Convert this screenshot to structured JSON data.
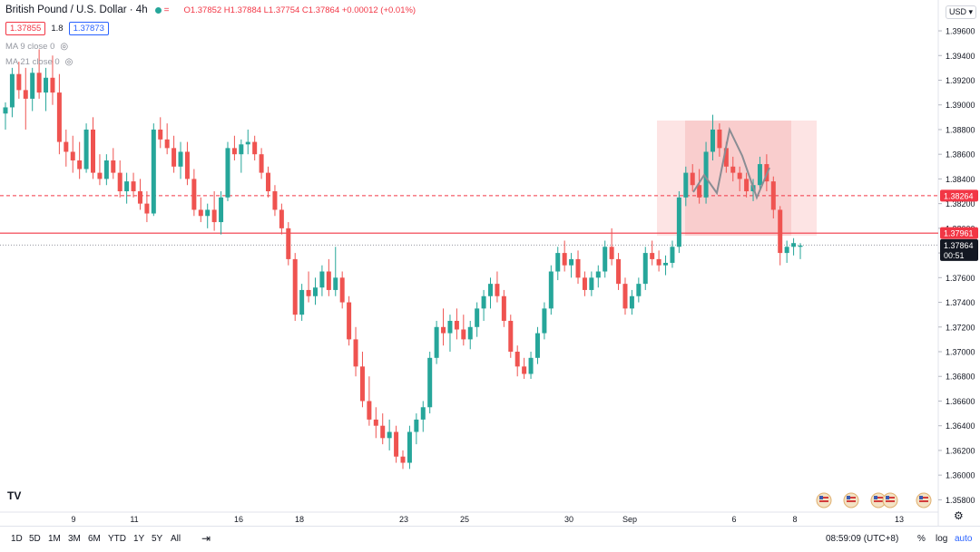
{
  "header": {
    "symbol": "British Pound / U.S. Dollar · 4h",
    "status_mark": "=",
    "ohlc": "O1.37852 H1.37884 L1.37754 C1.37864 +0.00012 (+0.01%)"
  },
  "quote": {
    "sell": "1.37855",
    "spread": "1.8",
    "buy": "1.37873"
  },
  "indicators": [
    {
      "label": "MA 9 close 0"
    },
    {
      "label": "MA 21 close 0"
    }
  ],
  "currency_button": "USD",
  "tv_logo": "TV",
  "bottom_bar": {
    "timeframes": [
      "1D",
      "5D",
      "1M",
      "3M",
      "6M",
      "YTD",
      "1Y",
      "5Y",
      "All"
    ],
    "clock": "08:59:09 (UTC+8)",
    "percent_label": "%",
    "log_label": "log",
    "auto_label": "auto"
  },
  "colors": {
    "up": "#26a69a",
    "down": "#ef5350",
    "accent": "#2962ff",
    "zone": "#f8c4c4"
  },
  "chart_data": {
    "type": "candlestick",
    "x_tick_labels": [
      "9",
      "11",
      "16",
      "18",
      "23",
      "25",
      "30",
      "Sep",
      "6",
      "8",
      "13"
    ],
    "ylim": [
      1.357,
      1.3985
    ],
    "y_ticks": [
      "1.39600",
      "1.39400",
      "1.39200",
      "1.39000",
      "1.38800",
      "1.38600",
      "1.38400",
      "1.38200",
      "1.38000",
      "1.37800",
      "1.37600",
      "1.37400",
      "1.37200",
      "1.37000",
      "1.36800",
      "1.36600",
      "1.36400",
      "1.36200",
      "1.36000",
      "1.35800"
    ],
    "price_labels": [
      {
        "text": "1.38264",
        "value": 1.38264,
        "style": "dashed",
        "color": "#f23645"
      },
      {
        "text": "1.37961",
        "value": 1.37961,
        "style": "solid",
        "color": "#f23645"
      },
      {
        "text": "1.37864",
        "value": 1.37864,
        "style": "dotted",
        "color": "#131722",
        "sub": "00:51"
      }
    ],
    "candles": [
      [
        1.3893,
        1.3902,
        1.388,
        1.3898
      ],
      [
        1.3898,
        1.393,
        1.389,
        1.3925
      ],
      [
        1.3925,
        1.3935,
        1.3905,
        1.3912
      ],
      [
        1.3912,
        1.393,
        1.388,
        1.3905
      ],
      [
        1.3905,
        1.393,
        1.3895,
        1.3926
      ],
      [
        1.3926,
        1.3945,
        1.3905,
        1.391
      ],
      [
        1.391,
        1.393,
        1.3895,
        1.3922
      ],
      [
        1.3922,
        1.394,
        1.39,
        1.391
      ],
      [
        1.391,
        1.3925,
        1.386,
        1.387
      ],
      [
        1.387,
        1.388,
        1.385,
        1.3862
      ],
      [
        1.3862,
        1.3875,
        1.3845,
        1.3855
      ],
      [
        1.3855,
        1.387,
        1.384,
        1.3848
      ],
      [
        1.3848,
        1.3885,
        1.3845,
        1.388
      ],
      [
        1.388,
        1.389,
        1.384,
        1.3845
      ],
      [
        1.3845,
        1.386,
        1.3835,
        1.384
      ],
      [
        1.384,
        1.386,
        1.3835,
        1.3855
      ],
      [
        1.3855,
        1.3865,
        1.384,
        1.3845
      ],
      [
        1.3845,
        1.3855,
        1.3825,
        1.383
      ],
      [
        1.383,
        1.3845,
        1.382,
        1.3838
      ],
      [
        1.3838,
        1.3845,
        1.3825,
        1.383
      ],
      [
        1.383,
        1.384,
        1.3815,
        1.382
      ],
      [
        1.382,
        1.383,
        1.3805,
        1.3812
      ],
      [
        1.3812,
        1.3885,
        1.381,
        1.388
      ],
      [
        1.388,
        1.389,
        1.3865,
        1.3872
      ],
      [
        1.3872,
        1.3885,
        1.386,
        1.3865
      ],
      [
        1.3865,
        1.3875,
        1.3845,
        1.385
      ],
      [
        1.385,
        1.387,
        1.384,
        1.3862
      ],
      [
        1.3862,
        1.387,
        1.3835,
        1.384
      ],
      [
        1.384,
        1.3848,
        1.381,
        1.3815
      ],
      [
        1.3815,
        1.3825,
        1.3805,
        1.381
      ],
      [
        1.381,
        1.382,
        1.38,
        1.3815
      ],
      [
        1.3815,
        1.383,
        1.3798,
        1.3805
      ],
      [
        1.3805,
        1.383,
        1.3795,
        1.3825
      ],
      [
        1.3825,
        1.387,
        1.3822,
        1.3865
      ],
      [
        1.3865,
        1.3875,
        1.3855,
        1.386
      ],
      [
        1.386,
        1.3872,
        1.3845,
        1.3868
      ],
      [
        1.3868,
        1.388,
        1.386,
        1.387
      ],
      [
        1.387,
        1.3875,
        1.3855,
        1.386
      ],
      [
        1.386,
        1.3865,
        1.384,
        1.3845
      ],
      [
        1.3845,
        1.385,
        1.3825,
        1.383
      ],
      [
        1.383,
        1.3835,
        1.381,
        1.3815
      ],
      [
        1.3815,
        1.382,
        1.3795,
        1.38
      ],
      [
        1.38,
        1.3805,
        1.377,
        1.3775
      ],
      [
        1.3775,
        1.378,
        1.3725,
        1.373
      ],
      [
        1.373,
        1.3755,
        1.3725,
        1.375
      ],
      [
        1.375,
        1.3765,
        1.374,
        1.3745
      ],
      [
        1.3745,
        1.376,
        1.3738,
        1.3752
      ],
      [
        1.3752,
        1.377,
        1.3745,
        1.3765
      ],
      [
        1.3765,
        1.3775,
        1.3745,
        1.375
      ],
      [
        1.375,
        1.3785,
        1.3745,
        1.376
      ],
      [
        1.376,
        1.3765,
        1.3735,
        1.374
      ],
      [
        1.374,
        1.3745,
        1.3705,
        1.371
      ],
      [
        1.371,
        1.372,
        1.368,
        1.3688
      ],
      [
        1.3688,
        1.37,
        1.3655,
        1.366
      ],
      [
        1.366,
        1.368,
        1.364,
        1.3645
      ],
      [
        1.3645,
        1.3655,
        1.363,
        1.364
      ],
      [
        1.364,
        1.365,
        1.3625,
        1.363
      ],
      [
        1.363,
        1.3645,
        1.362,
        1.3635
      ],
      [
        1.3635,
        1.364,
        1.361,
        1.3615
      ],
      [
        1.3615,
        1.362,
        1.3605,
        1.361
      ],
      [
        1.361,
        1.364,
        1.3605,
        1.3635
      ],
      [
        1.3635,
        1.365,
        1.3625,
        1.3645
      ],
      [
        1.3645,
        1.366,
        1.3635,
        1.3655
      ],
      [
        1.3655,
        1.37,
        1.365,
        1.3695
      ],
      [
        1.3695,
        1.3725,
        1.369,
        1.372
      ],
      [
        1.372,
        1.3735,
        1.3705,
        1.3715
      ],
      [
        1.3715,
        1.373,
        1.37,
        1.3725
      ],
      [
        1.3725,
        1.3735,
        1.371,
        1.3718
      ],
      [
        1.3718,
        1.373,
        1.3705,
        1.371
      ],
      [
        1.371,
        1.3725,
        1.3702,
        1.372
      ],
      [
        1.372,
        1.374,
        1.3712,
        1.3735
      ],
      [
        1.3735,
        1.375,
        1.3725,
        1.3745
      ],
      [
        1.3745,
        1.376,
        1.3735,
        1.3755
      ],
      [
        1.3755,
        1.3765,
        1.374,
        1.3745
      ],
      [
        1.3745,
        1.375,
        1.372,
        1.3725
      ],
      [
        1.3725,
        1.373,
        1.3695,
        1.37
      ],
      [
        1.37,
        1.3705,
        1.368,
        1.3688
      ],
      [
        1.3688,
        1.3695,
        1.3678,
        1.3682
      ],
      [
        1.3682,
        1.37,
        1.3678,
        1.3695
      ],
      [
        1.3695,
        1.372,
        1.369,
        1.3715
      ],
      [
        1.3715,
        1.374,
        1.371,
        1.3735
      ],
      [
        1.3735,
        1.377,
        1.373,
        1.3765
      ],
      [
        1.3765,
        1.3785,
        1.3758,
        1.378
      ],
      [
        1.378,
        1.379,
        1.3765,
        1.377
      ],
      [
        1.377,
        1.378,
        1.376,
        1.3775
      ],
      [
        1.3775,
        1.3782,
        1.3755,
        1.376
      ],
      [
        1.376,
        1.3765,
        1.3745,
        1.375
      ],
      [
        1.375,
        1.3765,
        1.3745,
        1.376
      ],
      [
        1.376,
        1.377,
        1.3752,
        1.3765
      ],
      [
        1.3765,
        1.379,
        1.376,
        1.3785
      ],
      [
        1.3785,
        1.38,
        1.377,
        1.3775
      ],
      [
        1.3775,
        1.378,
        1.375,
        1.3755
      ],
      [
        1.3755,
        1.376,
        1.373,
        1.3735
      ],
      [
        1.3735,
        1.375,
        1.373,
        1.3745
      ],
      [
        1.3745,
        1.376,
        1.374,
        1.3755
      ],
      [
        1.3755,
        1.3785,
        1.375,
        1.378
      ],
      [
        1.378,
        1.379,
        1.377,
        1.3775
      ],
      [
        1.3775,
        1.3782,
        1.3765,
        1.377
      ],
      [
        1.377,
        1.3778,
        1.3762,
        1.3772
      ],
      [
        1.3772,
        1.379,
        1.3768,
        1.3785
      ],
      [
        1.3785,
        1.383,
        1.378,
        1.3825
      ],
      [
        1.3825,
        1.385,
        1.3818,
        1.3845
      ],
      [
        1.3845,
        1.3852,
        1.383,
        1.3835
      ],
      [
        1.3835,
        1.3848,
        1.382,
        1.3825
      ],
      [
        1.3825,
        1.387,
        1.382,
        1.3862
      ],
      [
        1.3862,
        1.3892,
        1.3855,
        1.388
      ],
      [
        1.388,
        1.3885,
        1.3858,
        1.3865
      ],
      [
        1.3865,
        1.387,
        1.3845,
        1.385
      ],
      [
        1.385,
        1.3858,
        1.3838,
        1.3845
      ],
      [
        1.3845,
        1.385,
        1.383,
        1.384
      ],
      [
        1.384,
        1.3845,
        1.3825,
        1.383
      ],
      [
        1.383,
        1.384,
        1.3822,
        1.3835
      ],
      [
        1.3835,
        1.3858,
        1.383,
        1.3852
      ],
      [
        1.3852,
        1.386,
        1.383,
        1.3838
      ],
      [
        1.3838,
        1.3842,
        1.3808,
        1.3815
      ],
      [
        1.3815,
        1.3818,
        1.377,
        1.378
      ],
      [
        1.378,
        1.379,
        1.3772,
        1.3785
      ],
      [
        1.3785,
        1.3792,
        1.3778,
        1.3788
      ],
      [
        1.3785,
        1.3788,
        1.3775,
        1.3786
      ]
    ]
  }
}
